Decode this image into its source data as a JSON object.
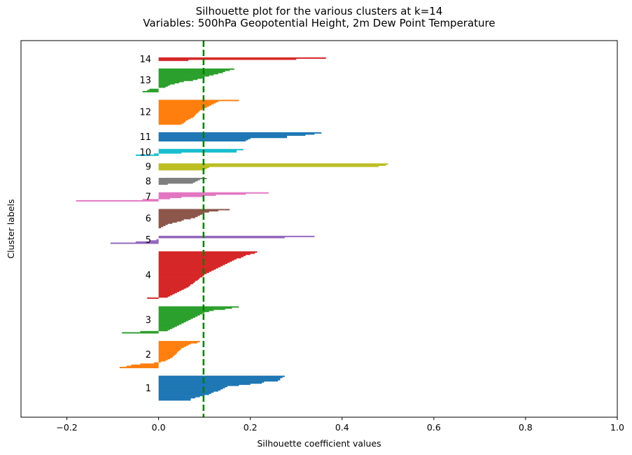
{
  "chart_data": {
    "type": "bar",
    "orientation": "horizontal",
    "title": "Silhouette plot for the various clusters at k=14",
    "subtitle": "Variables: 500hPa Geopotential Height, 2m Dew Point Temperature",
    "xlabel": "Silhouette coefficient values",
    "ylabel": "Cluster labels",
    "xlim": [
      -0.3,
      1.0
    ],
    "xticks": [
      "−0.2",
      "0.0",
      "0.2",
      "0.4",
      "0.6",
      "0.8",
      "1.0"
    ],
    "xtick_values": [
      -0.2,
      0.0,
      0.2,
      0.4,
      0.6,
      0.8,
      1.0
    ],
    "average_silhouette": 0.098,
    "average_line_color": "#008000",
    "grid": false,
    "clusters": [
      {
        "label": "1",
        "color": "#1f77b4",
        "values": [
          0.275,
          0.27,
          0.265,
          0.265,
          0.26,
          0.23,
          0.225,
          0.2,
          0.175,
          0.15,
          0.145,
          0.14,
          0.135,
          0.13,
          0.12,
          0.115,
          0.11,
          0.1,
          0.09,
          0.08,
          0.07,
          0.07
        ]
      },
      {
        "label": "2",
        "color": "#ff7f0e",
        "values": [
          0.09,
          0.085,
          0.07,
          0.065,
          0.06,
          0.055,
          0.05,
          0.048,
          0.045,
          0.042,
          0.04,
          0.038,
          0.035,
          0.032,
          0.03,
          0.025,
          0.02,
          0.015,
          0.005,
          -0.01,
          -0.04,
          -0.06,
          -0.07,
          -0.085
        ]
      },
      {
        "label": "3",
        "color": "#2ca02c",
        "values": [
          0.175,
          0.16,
          0.145,
          0.12,
          0.11,
          0.1,
          0.095,
          0.09,
          0.085,
          0.08,
          0.075,
          0.07,
          0.065,
          0.06,
          0.055,
          0.05,
          0.045,
          0.04,
          0.035,
          0.03,
          0.025,
          0.02,
          -0.04,
          -0.08
        ]
      },
      {
        "label": "4",
        "color": "#d62728",
        "values": [
          0.215,
          0.21,
          0.2,
          0.19,
          0.185,
          0.18,
          0.17,
          0.165,
          0.16,
          0.155,
          0.15,
          0.145,
          0.14,
          0.135,
          0.13,
          0.125,
          0.12,
          0.115,
          0.11,
          0.105,
          0.1,
          0.098,
          0.095,
          0.09,
          0.088,
          0.085,
          0.08,
          0.078,
          0.075,
          0.07,
          0.068,
          0.065,
          0.06,
          0.055,
          0.05,
          0.045,
          0.04,
          0.035,
          0.03,
          0.025,
          0.02,
          -0.025
        ]
      },
      {
        "label": "5",
        "color": "#9467bd",
        "values": [
          0.34,
          0.275,
          0.0,
          -0.005,
          -0.02,
          -0.05,
          -0.105
        ]
      },
      {
        "label": "6",
        "color": "#8c564b",
        "values": [
          0.155,
          0.13,
          0.11,
          0.1,
          0.095,
          0.09,
          0.085,
          0.08,
          0.07,
          0.055,
          0.05,
          0.04,
          0.03,
          0.02,
          0.015,
          0.01,
          0.005
        ]
      },
      {
        "label": "7",
        "color": "#e377c2",
        "values": [
          0.24,
          0.19,
          0.125,
          0.1,
          0.05,
          0.025,
          -0.035,
          -0.18
        ]
      },
      {
        "label": "8",
        "color": "#7f7f7f",
        "values": [
          0.105,
          0.09,
          0.085,
          0.08,
          0.075,
          0.02
        ]
      },
      {
        "label": "9",
        "color": "#bcbd22",
        "values": [
          0.5,
          0.495,
          0.48,
          0.11,
          0.105,
          0.1
        ]
      },
      {
        "label": "10",
        "color": "#17becf",
        "values": [
          0.185,
          0.17,
          0.17,
          0.05,
          -0.01,
          -0.05
        ]
      },
      {
        "label": "11",
        "color": "#1f77b4",
        "values": [
          0.355,
          0.34,
          0.32,
          0.28,
          0.28,
          0.2,
          0.195,
          0.19
        ]
      },
      {
        "label": "12",
        "color": "#ff7f0e",
        "values": [
          0.175,
          0.13,
          0.125,
          0.12,
          0.115,
          0.11,
          0.105,
          0.1,
          0.095,
          0.09,
          0.088,
          0.085,
          0.082,
          0.08,
          0.078,
          0.075,
          0.07,
          0.065,
          0.06,
          0.058,
          0.055,
          0.05
        ]
      },
      {
        "label": "13",
        "color": "#2ca02c",
        "values": [
          0.165,
          0.155,
          0.145,
          0.14,
          0.13,
          0.12,
          0.11,
          0.1,
          0.095,
          0.085,
          0.075,
          0.055,
          0.045,
          0.035,
          0.025,
          0.02,
          0.015,
          0.0,
          -0.02,
          -0.025,
          -0.035
        ]
      },
      {
        "label": "14",
        "color": "#d62728",
        "values": [
          0.365,
          0.3,
          0.065
        ]
      }
    ]
  }
}
